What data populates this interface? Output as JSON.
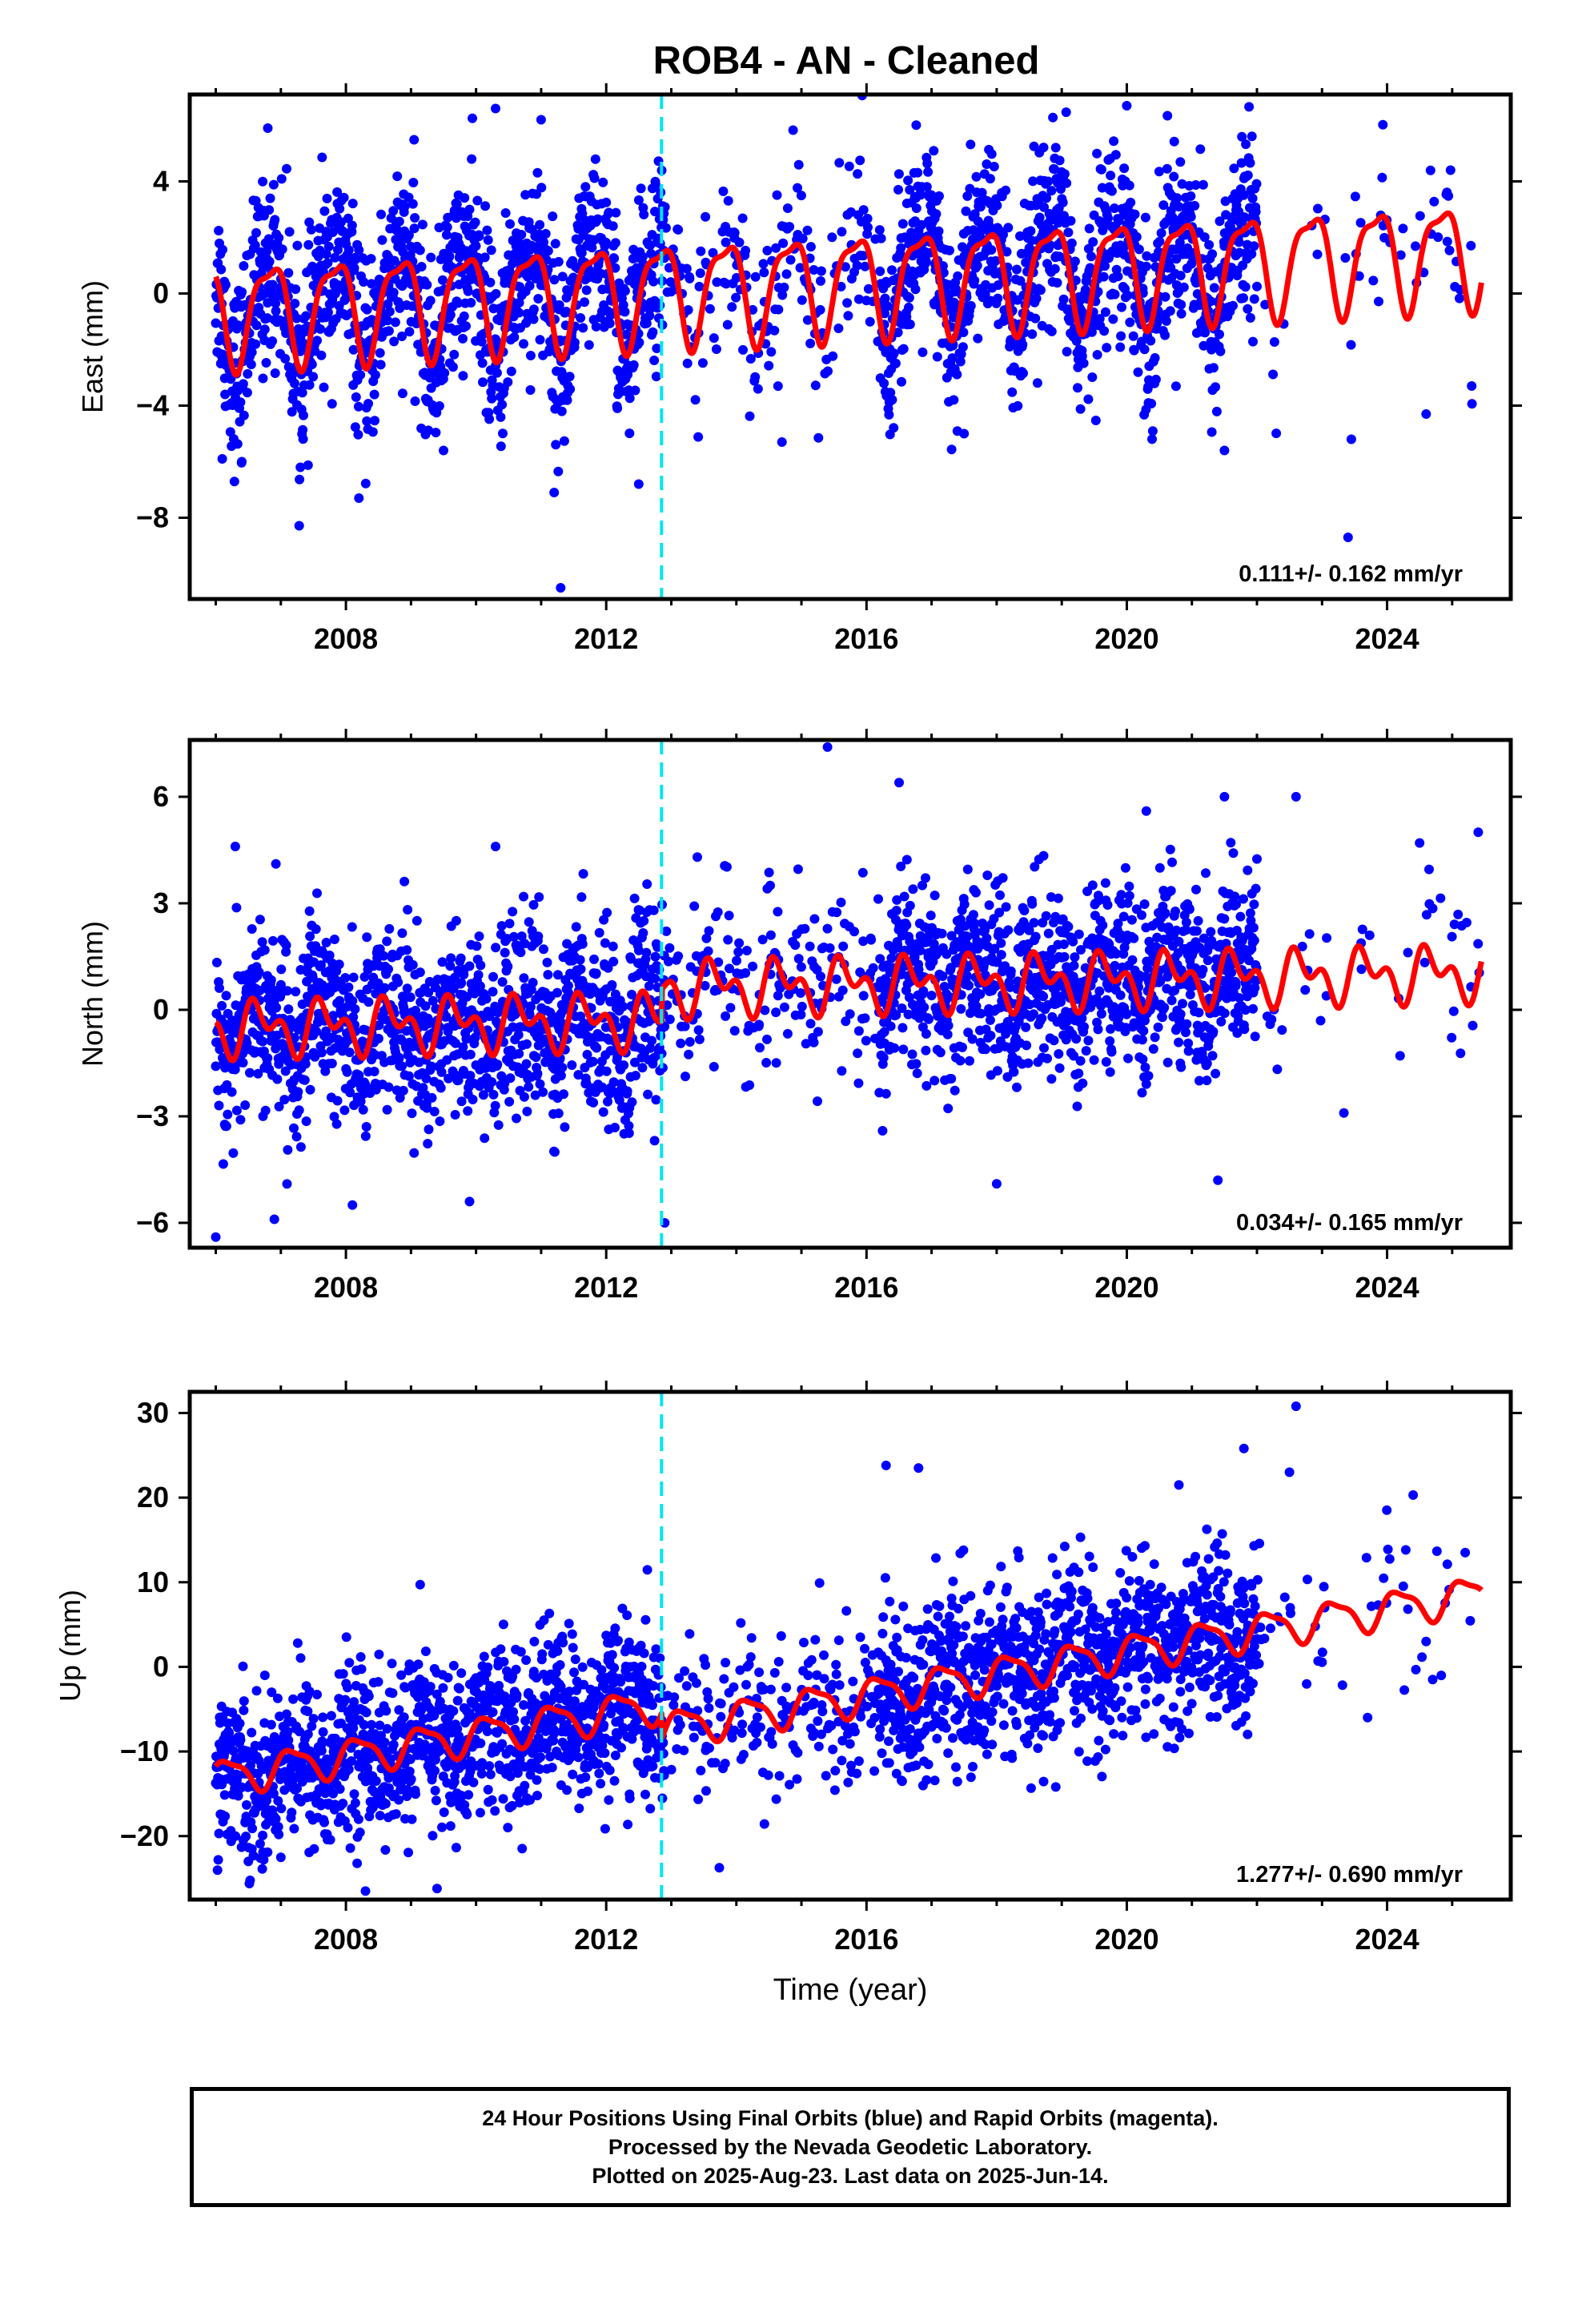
{
  "title": "ROB4  - AN - Cleaned",
  "footer": {
    "line1": "24 Hour Positions Using Final Orbits (blue) and Rapid Orbits (magenta).",
    "line2": "Processed by the Nevada Geodetic Laboratory.",
    "line3": "Plotted on 2025-Aug-23. Last data on 2025-Jun-14."
  },
  "colors": {
    "observations": "#0000ff",
    "model_fit": "#ff0000",
    "equipment_change": "#00e5ee"
  },
  "chart_data": [
    {
      "type": "scatter",
      "panel": "East",
      "ylabel": "East (mm)",
      "xlabel": "",
      "xlim": [
        2005.6,
        2025.9
      ],
      "ylim": [
        -10.9,
        7.1
      ],
      "xticks": [
        2008,
        2012,
        2016,
        2020,
        2024
      ],
      "yticks": [
        4,
        0,
        -4,
        -8
      ],
      "rate_label": "0.111+/- 0.162 mm/yr",
      "equipment_change_year": 2012.85,
      "model": {
        "offset": 0.4,
        "rate": 0.111,
        "ref_year": 2015.5,
        "annual_amp": 1.75,
        "annual_phase": 2.65,
        "semiannual_amp": 0.55,
        "semiannual_phase": 0.9,
        "step": 0.0
      },
      "scatter_sigma": 1.6,
      "outliers": [
        [
          2006.1,
          -5.9
        ],
        [
          2006.4,
          -6.0
        ],
        [
          2007.3,
          -6.2
        ],
        [
          2008.2,
          -7.3
        ],
        [
          2009.5,
          -5.6
        ],
        [
          2011.2,
          -7.1
        ],
        [
          2011.3,
          -10.5
        ],
        [
          2012.5,
          -6.8
        ],
        [
          2014.7,
          -5.3
        ],
        [
          2017.5,
          -5.0
        ],
        [
          2021.5,
          -5.6
        ],
        [
          2023.4,
          -8.7
        ],
        [
          2023.45,
          -5.2
        ],
        [
          2024.6,
          -4.3
        ],
        [
          2025.3,
          -3.3
        ],
        [
          2010.3,
          6.6
        ],
        [
          2011.0,
          6.2
        ],
        [
          2020.0,
          6.7
        ],
        [
          2006.8,
          5.9
        ]
      ]
    },
    {
      "type": "scatter",
      "panel": "North",
      "ylabel": "North (mm)",
      "xlabel": "",
      "xlim": [
        2005.6,
        2025.9
      ],
      "ylim": [
        -6.7,
        7.6
      ],
      "xticks": [
        2008,
        2012,
        2016,
        2020,
        2024
      ],
      "yticks": [
        6,
        3,
        0,
        -3,
        -6
      ],
      "rate_label": "0.034+/- 0.165 mm/yr",
      "equipment_change_year": 2012.85,
      "model": {
        "offset": -0.2,
        "rate": 0.034,
        "ref_year": 2015.5,
        "annual_amp": 0.55,
        "annual_phase": 3.6,
        "semiannual_amp": 0.45,
        "semiannual_phase": 1.2,
        "step": 0.9
      },
      "scatter_sigma": 1.25,
      "outliers": [
        [
          2006.0,
          -6.4
        ],
        [
          2006.9,
          -5.9
        ],
        [
          2008.1,
          -5.5
        ],
        [
          2009.9,
          -5.4
        ],
        [
          2012.9,
          -6.0
        ],
        [
          2015.4,
          7.4
        ],
        [
          2016.5,
          6.4
        ],
        [
          2021.5,
          6.0
        ],
        [
          2022.6,
          6.0
        ],
        [
          2020.3,
          5.6
        ],
        [
          2025.4,
          5.0
        ],
        [
          2024.5,
          4.7
        ],
        [
          2018.0,
          -4.9
        ],
        [
          2021.4,
          -4.8
        ],
        [
          2006.3,
          4.6
        ],
        [
          2010.3,
          4.6
        ],
        [
          2013.4,
          4.3
        ]
      ]
    },
    {
      "type": "scatter",
      "panel": "Up",
      "ylabel": "Up (mm)",
      "xlabel": "Time (year)",
      "xlim": [
        2005.6,
        2025.9
      ],
      "ylim": [
        -27.5,
        32.5
      ],
      "xticks": [
        2008,
        2012,
        2016,
        2020,
        2024
      ],
      "yticks": [
        30,
        20,
        10,
        0,
        -10,
        -20
      ],
      "rate_label": "1.277+/- 0.690 mm/yr",
      "equipment_change_year": 2012.85,
      "model": {
        "offset": -1.0,
        "rate": 1.277,
        "ref_year": 2015.5,
        "annual_amp": 2.0,
        "annual_phase": 0.4,
        "semiannual_amp": 0.6,
        "semiannual_phase": 1.7,
        "step": -3.0
      },
      "scatter_sigma": 4.8,
      "outliers": [
        [
          2008.3,
          -26.5
        ],
        [
          2009.4,
          -26.2
        ],
        [
          2006.5,
          -23.0
        ],
        [
          2007.0,
          -22.5
        ],
        [
          2022.6,
          30.8
        ],
        [
          2022.5,
          23.0
        ],
        [
          2016.3,
          23.8
        ],
        [
          2016.8,
          23.5
        ],
        [
          2021.8,
          25.8
        ],
        [
          2020.8,
          21.5
        ],
        [
          2024.4,
          20.3
        ],
        [
          2025.2,
          13.5
        ],
        [
          2023.7,
          -6.0
        ],
        [
          2024.6,
          3.0
        ],
        [
          2024.7,
          -1.5
        ]
      ]
    }
  ]
}
